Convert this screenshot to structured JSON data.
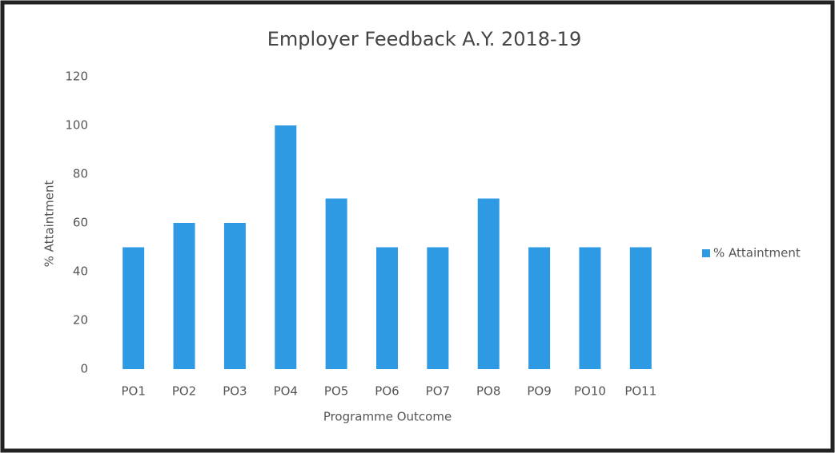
{
  "chart_data": {
    "type": "bar",
    "title": "Employer Feedback A.Y. 2018-19",
    "x_label": "Programme Outcome",
    "y_label": "% Attaintment",
    "categories": [
      "PO1",
      "PO2",
      "PO3",
      "PO4",
      "PO5",
      "PO6",
      "PO7",
      "PO8",
      "PO9",
      "PO10",
      "PO11"
    ],
    "series": [
      {
        "name": "% Attaintment",
        "color": "#2f9ae4",
        "values": [
          50,
          60,
          60,
          100,
          70,
          50,
          50,
          70,
          50,
          50,
          50
        ]
      }
    ],
    "ylim": [
      0,
      120
    ],
    "yticks": [
      0,
      20,
      40,
      60,
      80,
      100,
      120
    ],
    "grid": false,
    "legend": "right"
  }
}
